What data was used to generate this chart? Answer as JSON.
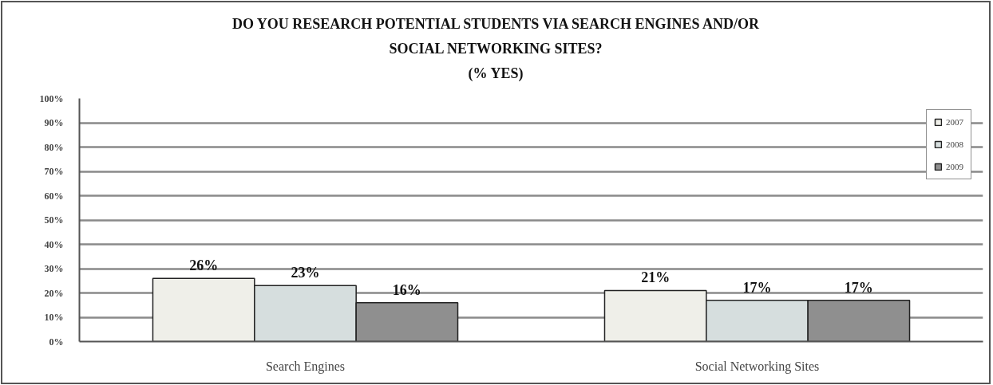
{
  "chart_data": {
    "type": "bar",
    "title": "DO YOU RESEARCH POTENTIAL STUDENTS VIA SEARCH ENGINES AND/OR SOCIAL NETWORKING SITES?",
    "subtitle": "(% YES)",
    "categories": [
      "Search Engines",
      "Social Networking Sites"
    ],
    "series": [
      {
        "name": "2007",
        "color": "#efefe9",
        "values": [
          26,
          21
        ],
        "value_labels": [
          "26%",
          "21%"
        ]
      },
      {
        "name": "2008",
        "color": "#d6dede",
        "values": [
          23,
          17
        ],
        "value_labels": [
          "23%",
          "17%"
        ]
      },
      {
        "name": "2009",
        "color": "#8f8f8f",
        "values": [
          16,
          17
        ],
        "value_labels": [
          "16%",
          "17%"
        ]
      }
    ],
    "ylim": [
      0,
      100
    ],
    "yticks": [
      {
        "value": 0,
        "label": "0%"
      },
      {
        "value": 10,
        "label": "10%"
      },
      {
        "value": 20,
        "label": "20%"
      },
      {
        "value": 30,
        "label": "30%"
      },
      {
        "value": 40,
        "label": "40%"
      },
      {
        "value": 50,
        "label": "50%"
      },
      {
        "value": 60,
        "label": "60%"
      },
      {
        "value": 70,
        "label": "70%"
      },
      {
        "value": 80,
        "label": "80%"
      },
      {
        "value": 90,
        "label": "90%"
      },
      {
        "value": 100,
        "label": "100%"
      }
    ],
    "grid": "y",
    "legend": "top right"
  }
}
